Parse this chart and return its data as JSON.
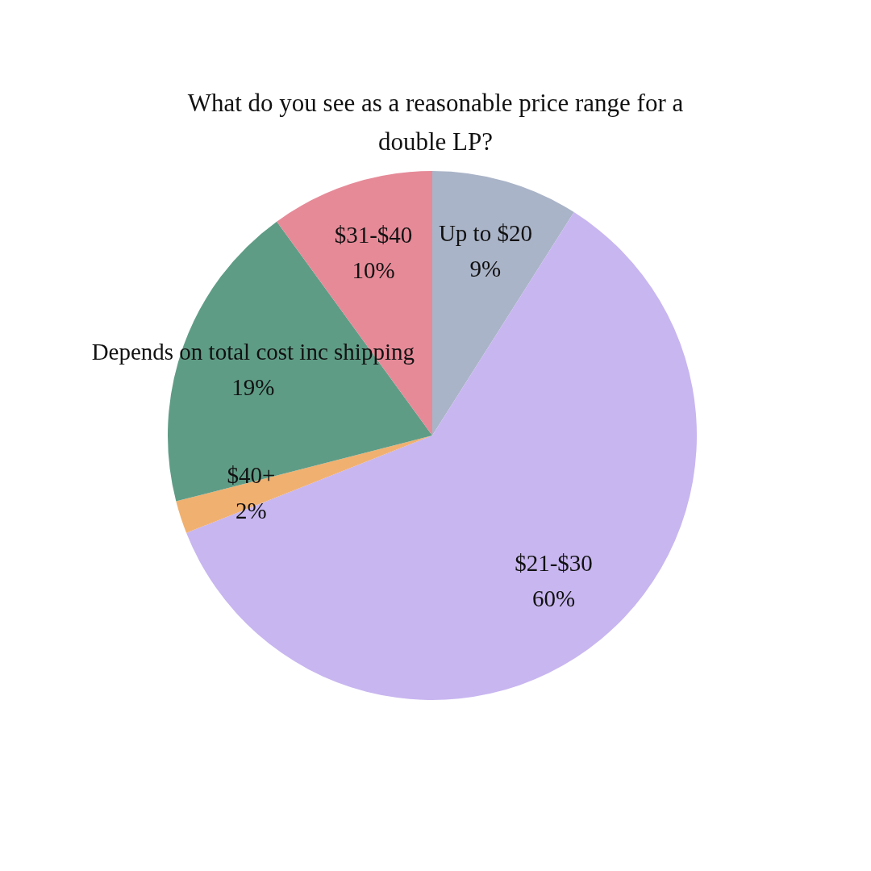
{
  "chart_data": {
    "type": "pie",
    "title": "What do you see as a reasonable price range for a double LP?",
    "categories": [
      "Up to $20",
      "$21-$30",
      "$40+",
      "Depends on total cost inc shipping",
      "$31-$40"
    ],
    "values": [
      9,
      60,
      2,
      19,
      10
    ],
    "value_labels": [
      "9%",
      "60%",
      "2%",
      "19%",
      "10%"
    ],
    "colors": [
      "#aab4c8",
      "#c8b6f0",
      "#f0b070",
      "#5f9c86",
      "#e68a98"
    ],
    "legend": false
  }
}
